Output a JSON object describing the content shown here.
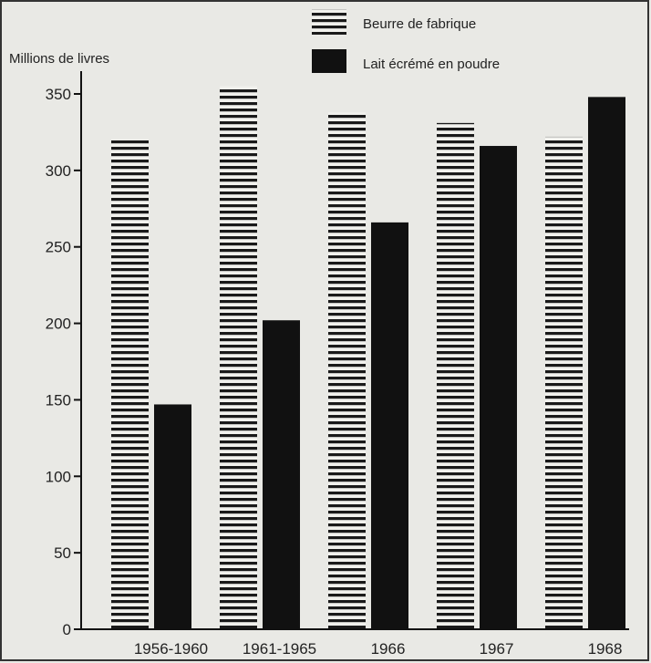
{
  "chart_data": {
    "type": "bar",
    "title": "",
    "xlabel": "",
    "ylabel": "Millions de livres",
    "ylim": [
      0,
      350
    ],
    "yticks": [
      0,
      50,
      100,
      150,
      200,
      250,
      300,
      350
    ],
    "grid": false,
    "legend_position": "top",
    "categories": [
      "1956-1960",
      "1961-1965",
      "1966",
      "1967",
      "1968"
    ],
    "series": [
      {
        "name": "Beurre de fabrique",
        "pattern": "horizontal-stripes",
        "color": "#1a1a1a",
        "values": [
          320,
          355,
          338,
          331,
          322
        ]
      },
      {
        "name": "Lait écrémé en poudre",
        "pattern": "solid",
        "color": "#111111",
        "values": [
          147,
          202,
          266,
          316,
          348
        ]
      }
    ]
  }
}
